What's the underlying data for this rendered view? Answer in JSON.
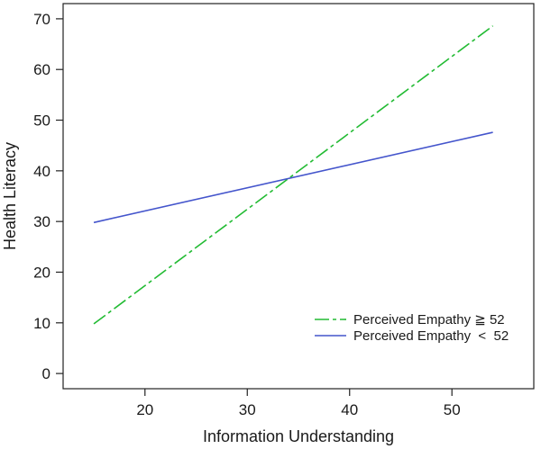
{
  "chart_data": {
    "type": "line",
    "title": "",
    "xlabel": "Information Understanding",
    "ylabel": "Health Literacy",
    "xlim": [
      12,
      58
    ],
    "ylim": [
      -3,
      73
    ],
    "xticks": [
      20,
      30,
      40,
      50
    ],
    "yticks": [
      0,
      10,
      20,
      30,
      40,
      50,
      60,
      70
    ],
    "grid": false,
    "legend_position": "bottom-right",
    "series": [
      {
        "name": "Perceived Empathy ≧ 52",
        "style": "dashed",
        "color": "#22bb33",
        "x": [
          15,
          54
        ],
        "y": [
          9.8,
          68.6
        ]
      },
      {
        "name": "Perceived Empathy  <  52",
        "style": "solid",
        "color": "#4455cc",
        "x": [
          15,
          54
        ],
        "y": [
          29.8,
          47.6
        ]
      }
    ]
  }
}
